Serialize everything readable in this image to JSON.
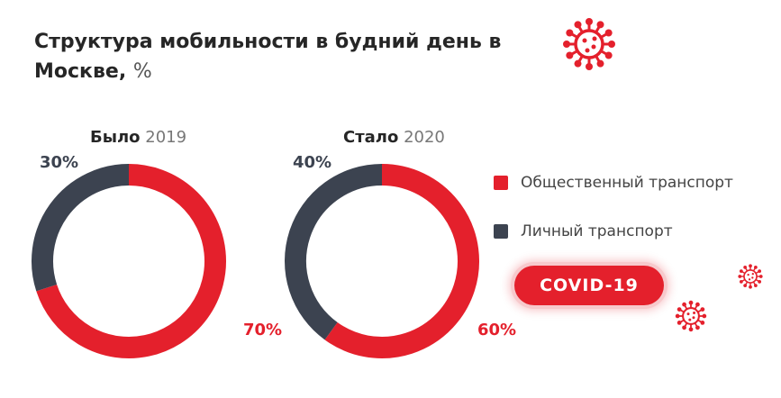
{
  "title": "Структура мобильности в будний день в Москве,",
  "title_unit": "%",
  "colors": {
    "public": "#e4202c",
    "private": "#3c4350",
    "accent": "#e4202c"
  },
  "legend": [
    {
      "label": "Общественный транспорт",
      "color": "#e4202c"
    },
    {
      "label": "Личный транспорт",
      "color": "#3c4350"
    }
  ],
  "badge": "COVID-19",
  "icons": [
    "virus-icon"
  ],
  "chart_data": [
    {
      "type": "pie",
      "title": "Было",
      "subtitle": "2019",
      "categories": [
        "Общественный транспорт",
        "Личный транспорт"
      ],
      "values": [
        70,
        30
      ],
      "labels": [
        "70%",
        "30%"
      ]
    },
    {
      "type": "pie",
      "title": "Стало",
      "subtitle": "2020",
      "categories": [
        "Общественный транспорт",
        "Личный транспорт"
      ],
      "values": [
        60,
        40
      ],
      "labels": [
        "60%",
        "40%"
      ]
    }
  ]
}
